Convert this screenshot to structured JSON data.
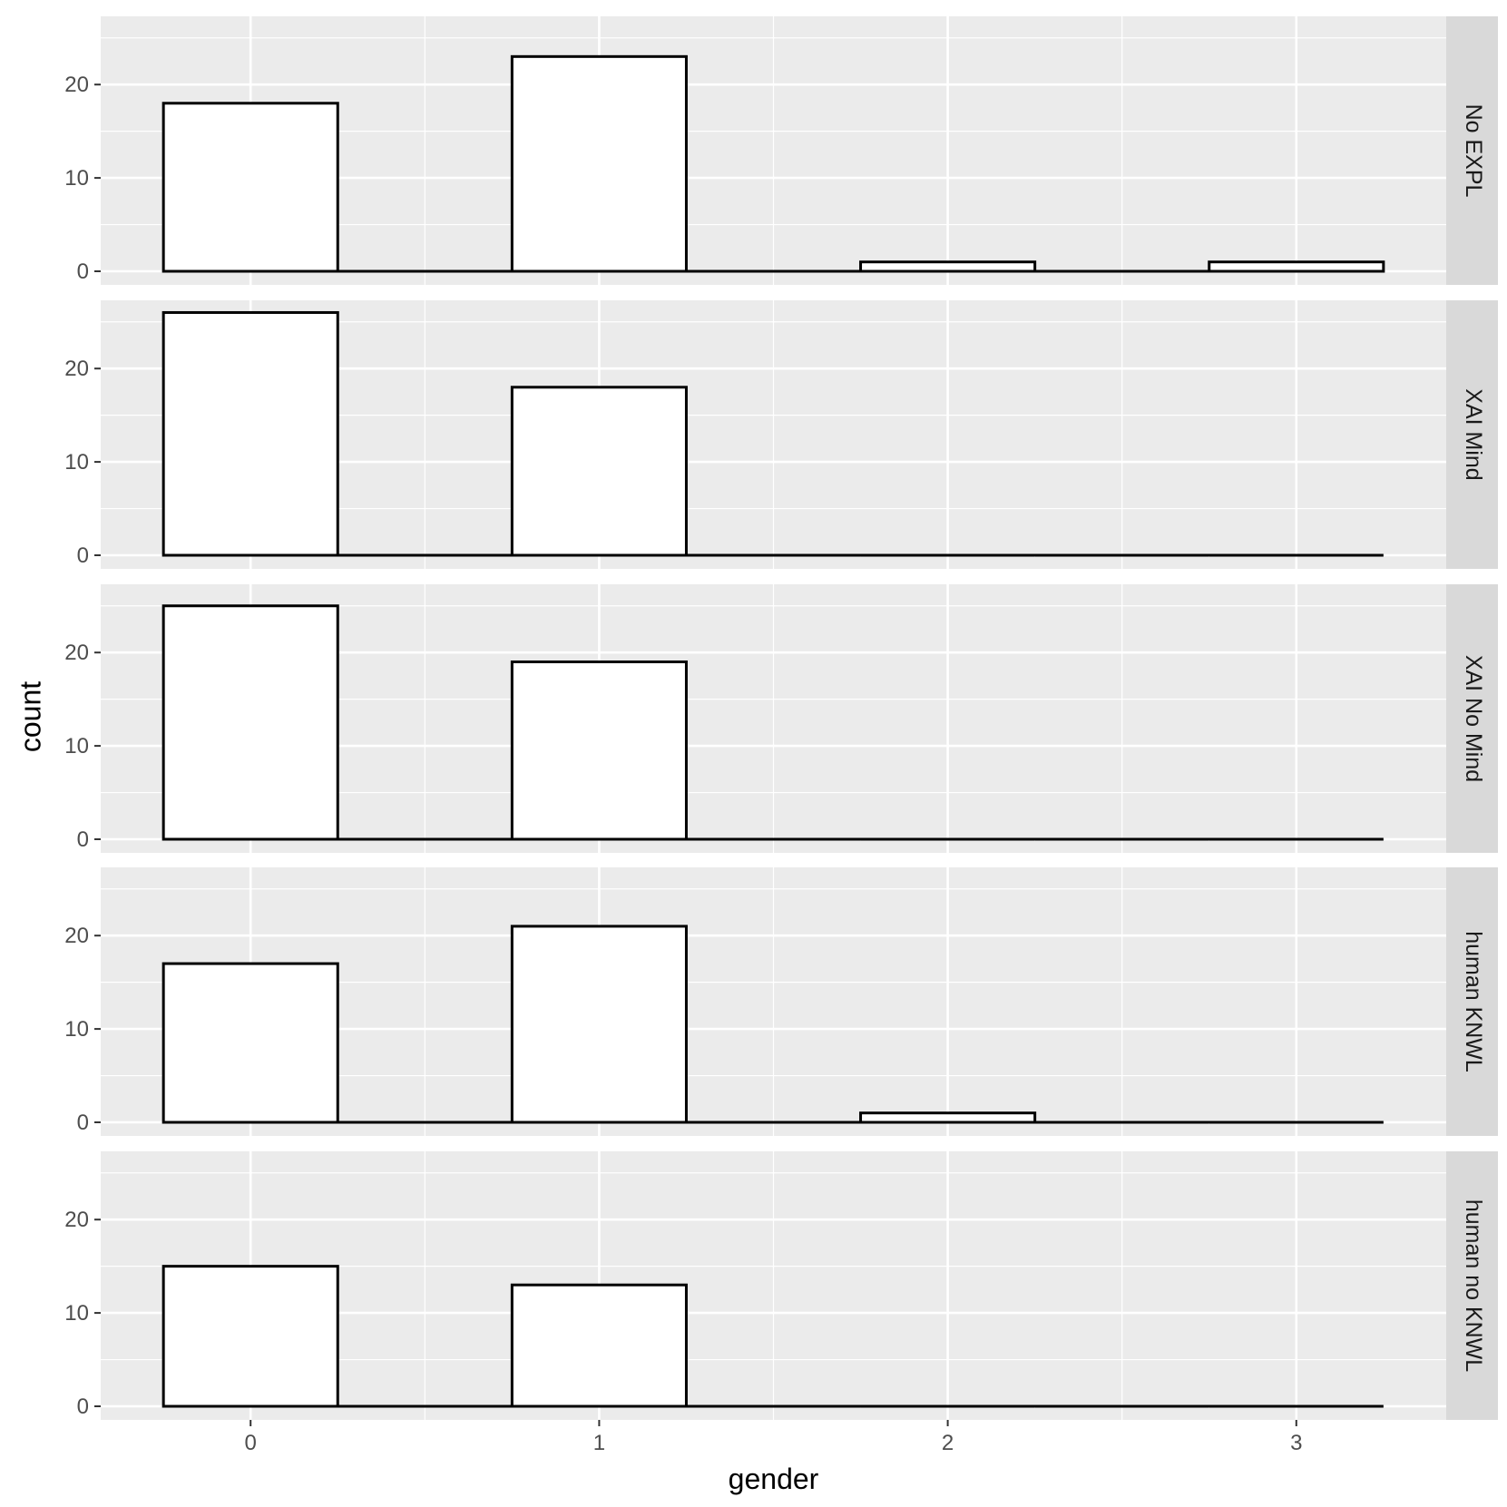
{
  "chart_data": {
    "type": "bar",
    "chart_kind": "faceted-histogram",
    "xlabel": "gender",
    "ylabel": "count",
    "x_categories": [
      0,
      1,
      2,
      3
    ],
    "x_ticks": [
      "0",
      "1",
      "2",
      "3"
    ],
    "y_ticks": [
      "0",
      "10",
      "20"
    ],
    "ylim": [
      0,
      27
    ],
    "xlim": [
      -0.43,
      3.43
    ],
    "bar_width": 0.5,
    "grid": true,
    "legend": "none",
    "facet_strip_position": "right",
    "colors": {
      "panel_background": "#ebebeb",
      "grid_line": "#ffffff",
      "bar_fill": "#ffffff",
      "bar_outline": "#000000",
      "strip_background": "#d9d9d9",
      "tick_label": "#4d4d4d",
      "tick_mark": "#333333"
    },
    "facets": [
      {
        "label": "No EXPL",
        "values": [
          18,
          23,
          1,
          1
        ]
      },
      {
        "label": "XAI Mind",
        "values": [
          26,
          18,
          0,
          0
        ]
      },
      {
        "label": "XAI No Mind",
        "values": [
          25,
          19,
          0,
          0
        ]
      },
      {
        "label": "human KNWL",
        "values": [
          17,
          21,
          1,
          0
        ]
      },
      {
        "label": "human no KNWL",
        "values": [
          15,
          13,
          0,
          0
        ]
      }
    ]
  }
}
